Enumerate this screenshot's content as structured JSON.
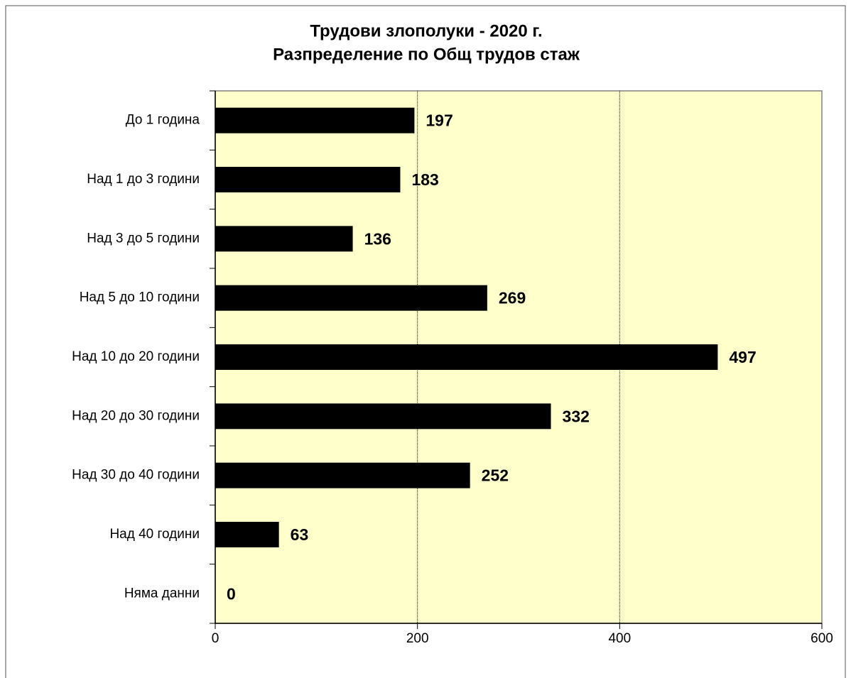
{
  "chart_data": {
    "type": "bar",
    "orientation": "horizontal",
    "title": "Трудови злополуки - 2020 г.",
    "subtitle": "Разпределение по Общ трудов стаж",
    "categories": [
      "До 1 година",
      "Над 1 до 3 години",
      "Над 3 до 5 години",
      "Над 5 до 10 години",
      "Над 10 до 20 години",
      "Над 20 до 30 години",
      "Над 30 до 40 години",
      "Над 40 години",
      "Няма данни"
    ],
    "values": [
      197,
      183,
      136,
      269,
      497,
      332,
      252,
      63,
      0
    ],
    "color": "#000000",
    "background": "#ffffcc",
    "xlim": [
      0,
      600
    ],
    "xticks": [
      0,
      200,
      400,
      600
    ],
    "grid": true
  }
}
